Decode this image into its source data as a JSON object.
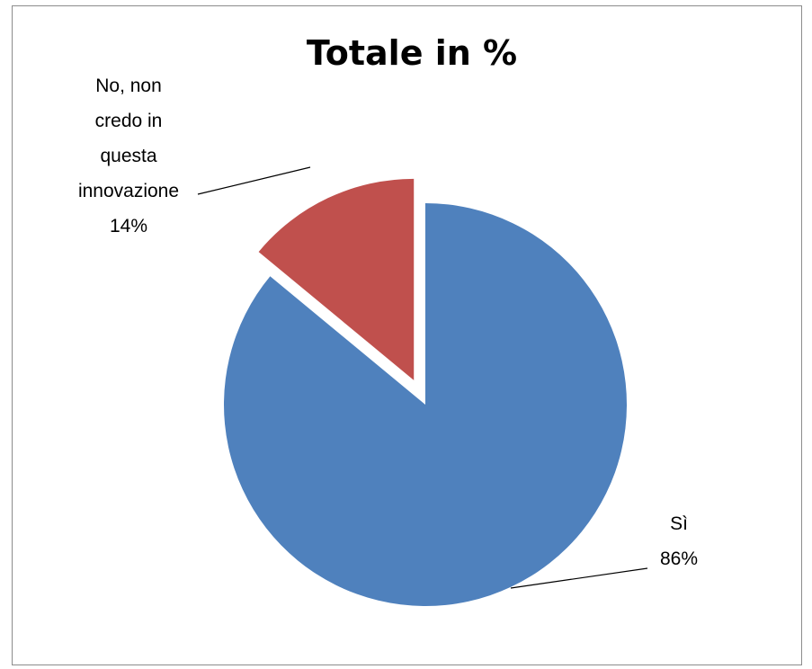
{
  "chart_data": {
    "type": "pie",
    "title": "Totale in %",
    "slices": [
      {
        "label_lines": [
          "No, non",
          "credo in",
          "questa",
          "innovazione"
        ],
        "value": 14,
        "value_label": "14%",
        "color": "#C0504D",
        "exploded": true
      },
      {
        "label_lines": [
          "Sì"
        ],
        "value": 86,
        "value_label": "86%",
        "color": "#4F81BD",
        "exploded": false
      }
    ],
    "start_angle": "12 o'clock",
    "direction": "counterclockwise for first slice",
    "legend": "none"
  }
}
